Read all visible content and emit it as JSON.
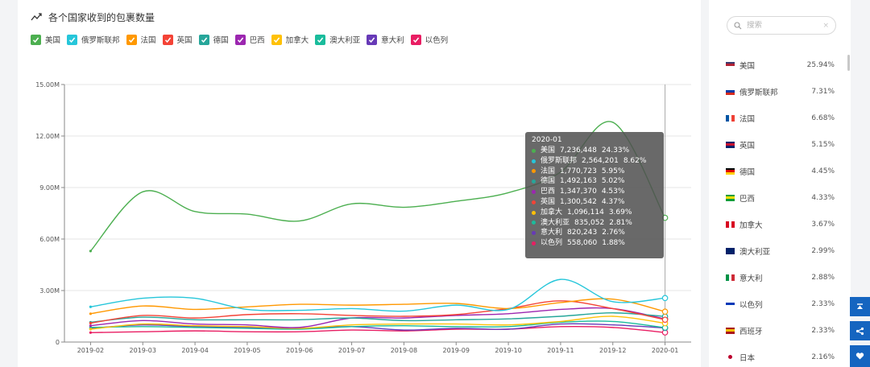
{
  "chart": {
    "title": "各个国家收到的包裹数量"
  },
  "legend": [
    {
      "label": "美国",
      "color": "#4caf50"
    },
    {
      "label": "俄罗斯联邦",
      "color": "#26c6da"
    },
    {
      "label": "法国",
      "color": "#ff9800"
    },
    {
      "label": "英国",
      "color": "#f44336"
    },
    {
      "label": "德国",
      "color": "#26a69a"
    },
    {
      "label": "巴西",
      "color": "#9c27b0"
    },
    {
      "label": "加拿大",
      "color": "#ffc107"
    },
    {
      "label": "澳大利亚",
      "color": "#1abc9c"
    },
    {
      "label": "意大利",
      "color": "#673ab7"
    },
    {
      "label": "以色列",
      "color": "#e91e63"
    }
  ],
  "tooltip": {
    "title": "2020-01",
    "rows": [
      {
        "name": "美国",
        "value": "7,236,448",
        "pct": "24.33%",
        "color": "#4caf50"
      },
      {
        "name": "俄罗斯联邦",
        "value": "2,564,201",
        "pct": "8.62%",
        "color": "#26c6da"
      },
      {
        "name": "法国",
        "value": "1,770,723",
        "pct": "5.95%",
        "color": "#ff9800"
      },
      {
        "name": "德国",
        "value": "1,492,163",
        "pct": "5.02%",
        "color": "#26a69a"
      },
      {
        "name": "巴西",
        "value": "1,347,370",
        "pct": "4.53%",
        "color": "#9c27b0"
      },
      {
        "name": "英国",
        "value": "1,300,542",
        "pct": "4.37%",
        "color": "#f44336"
      },
      {
        "name": "加拿大",
        "value": "1,096,114",
        "pct": "3.69%",
        "color": "#ffc107"
      },
      {
        "name": "澳大利亚",
        "value": "835,052",
        "pct": "2.81%",
        "color": "#1abc9c"
      },
      {
        "name": "意大利",
        "value": "820,243",
        "pct": "2.76%",
        "color": "#673ab7"
      },
      {
        "name": "以色列",
        "value": "558,060",
        "pct": "1.88%",
        "color": "#e91e63"
      }
    ]
  },
  "search": {
    "placeholder": "搜索",
    "clear": "×"
  },
  "ranking": [
    {
      "name": "美国",
      "pct": "25.94%",
      "flag": [
        "#3c3b6e",
        "#b22234",
        "#ffffff"
      ]
    },
    {
      "name": "俄罗斯联邦",
      "pct": "7.31%",
      "flag": [
        "#ffffff",
        "#0039a6",
        "#d52b1e"
      ]
    },
    {
      "name": "法国",
      "pct": "6.68%",
      "flag": [
        "#0055a4",
        "#ffffff",
        "#ef4135"
      ],
      "vertical": true
    },
    {
      "name": "英国",
      "pct": "5.15%",
      "flag": [
        "#012169",
        "#c8102e",
        "#012169"
      ]
    },
    {
      "name": "德国",
      "pct": "4.45%",
      "flag": [
        "#000000",
        "#dd0000",
        "#ffce00"
      ]
    },
    {
      "name": "巴西",
      "pct": "4.33%",
      "flag": [
        "#009c3b",
        "#ffdf00",
        "#009c3b"
      ]
    },
    {
      "name": "加拿大",
      "pct": "3.67%",
      "flag": [
        "#d80621",
        "#ffffff",
        "#d80621"
      ],
      "vertical": true
    },
    {
      "name": "澳大利亚",
      "pct": "2.99%",
      "flag": [
        "#012169",
        "#012169",
        "#012169"
      ]
    },
    {
      "name": "意大利",
      "pct": "2.88%",
      "flag": [
        "#009246",
        "#ffffff",
        "#ce2b37"
      ],
      "vertical": true
    },
    {
      "name": "以色列",
      "pct": "2.33%",
      "flag": [
        "#ffffff",
        "#0038b8",
        "#ffffff"
      ]
    },
    {
      "name": "西班牙",
      "pct": "2.33%",
      "flag": [
        "#aa151b",
        "#f1bf00",
        "#aa151b"
      ]
    },
    {
      "name": "日本",
      "pct": "2.16%",
      "flag": [
        "#ffffff",
        "#bc002d",
        "#ffffff"
      ]
    }
  ],
  "chart_data": {
    "type": "line",
    "title": "各个国家收到的包裹数量",
    "xlabel": "",
    "ylabel": "",
    "ylim": [
      0,
      15000000
    ],
    "yticks": [
      0,
      3000000,
      6000000,
      9000000,
      12000000,
      15000000
    ],
    "ytick_labels": [
      "0",
      "3.00M",
      "6.00M",
      "9.00M",
      "12.00M",
      "15.00M"
    ],
    "categories": [
      "2019-02",
      "2019-03",
      "2019-04",
      "2019-05",
      "2019-06",
      "2019-07",
      "2019-08",
      "2019-09",
      "2019-10",
      "2019-11",
      "2019-12",
      "2020-01"
    ],
    "series": [
      {
        "name": "美国",
        "color": "#4caf50",
        "values": [
          5300000,
          8750000,
          7600000,
          7450000,
          7050000,
          8050000,
          7850000,
          8200000,
          8700000,
          9900000,
          12800000,
          7236448
        ]
      },
      {
        "name": "俄罗斯联邦",
        "color": "#26c6da",
        "values": [
          2050000,
          2550000,
          2550000,
          1900000,
          1850000,
          1950000,
          1800000,
          2150000,
          1900000,
          3650000,
          2350000,
          2564201
        ]
      },
      {
        "name": "法国",
        "color": "#ff9800",
        "values": [
          1650000,
          2100000,
          1900000,
          2050000,
          2200000,
          2150000,
          2200000,
          2250000,
          1950000,
          2300000,
          2500000,
          1770723
        ]
      },
      {
        "name": "英国",
        "color": "#f44336",
        "values": [
          1100000,
          1550000,
          1400000,
          1600000,
          1650000,
          1550000,
          1500000,
          1600000,
          1950000,
          2400000,
          1950000,
          1300542
        ]
      },
      {
        "name": "德国",
        "color": "#26a69a",
        "values": [
          1150000,
          1450000,
          1300000,
          1300000,
          1300000,
          1400000,
          1250000,
          1300000,
          1350000,
          1500000,
          1700000,
          1492163
        ]
      },
      {
        "name": "巴西",
        "color": "#9c27b0",
        "values": [
          950000,
          1250000,
          1050000,
          1000000,
          850000,
          1400000,
          1400000,
          1550000,
          1650000,
          1900000,
          1950000,
          1347370
        ]
      },
      {
        "name": "加拿大",
        "color": "#ffc107",
        "values": [
          750000,
          1050000,
          950000,
          900000,
          800000,
          1000000,
          1050000,
          1050000,
          1000000,
          1200000,
          1500000,
          1096114
        ]
      },
      {
        "name": "澳大利亚",
        "color": "#1abc9c",
        "values": [
          850000,
          900000,
          850000,
          800000,
          750000,
          900000,
          950000,
          900000,
          900000,
          1150000,
          1200000,
          835052
        ]
      },
      {
        "name": "意大利",
        "color": "#673ab7",
        "values": [
          800000,
          1000000,
          900000,
          850000,
          800000,
          900000,
          700000,
          800000,
          750000,
          1050000,
          1000000,
          820243
        ]
      },
      {
        "name": "以色列",
        "color": "#e91e63",
        "values": [
          550000,
          600000,
          650000,
          600000,
          600000,
          700000,
          650000,
          750000,
          750000,
          900000,
          850000,
          558060
        ]
      }
    ],
    "highlight_category": "2020-01",
    "legend_position": "top-left"
  }
}
